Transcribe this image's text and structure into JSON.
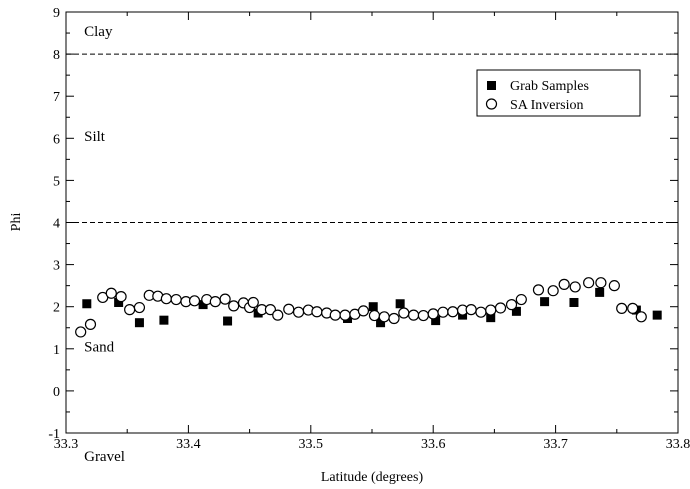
{
  "chart_data": {
    "type": "scatter",
    "title": "",
    "xlabel": "Latitude (degrees)",
    "ylabel": "Phi",
    "xlim": [
      33.3,
      33.8
    ],
    "ylim": [
      -1,
      9
    ],
    "xticks": [
      33.3,
      33.4,
      33.5,
      33.6,
      33.7,
      33.8
    ],
    "yticks": [
      -1,
      0,
      1,
      2,
      3,
      4,
      5,
      6,
      7,
      8,
      9
    ],
    "xtick_labels": [
      "33.3",
      "33.4",
      "33.5",
      "33.6",
      "33.7",
      "33.8"
    ],
    "ytick_labels": [
      "-1",
      "0",
      "1",
      "2",
      "3",
      "4",
      "5",
      "6",
      "7",
      "8",
      "9"
    ],
    "grid": false,
    "legend_position": "top-right",
    "reference_lines": [
      {
        "y": 8,
        "style": "dashed"
      },
      {
        "y": 4,
        "style": "dashed"
      }
    ],
    "annotations": [
      {
        "text": "Clay",
        "x": 33.305,
        "y": 8.55
      },
      {
        "text": "Silt",
        "x": 33.305,
        "y": 6.05
      },
      {
        "text": "Sand",
        "x": 33.305,
        "y": 1.05
      },
      {
        "text": "Gravel",
        "x": 33.305,
        "y": -1.55
      }
    ],
    "series": [
      {
        "name": "Grab Samples",
        "marker": "filled-square",
        "points": [
          [
            33.317,
            2.07
          ],
          [
            33.343,
            2.1
          ],
          [
            33.36,
            1.62
          ],
          [
            33.38,
            1.68
          ],
          [
            33.412,
            2.05
          ],
          [
            33.432,
            1.66
          ],
          [
            33.457,
            1.85
          ],
          [
            33.53,
            1.72
          ],
          [
            33.551,
            2.0
          ],
          [
            33.557,
            1.62
          ],
          [
            33.573,
            2.07
          ],
          [
            33.602,
            1.67
          ],
          [
            33.624,
            1.8
          ],
          [
            33.647,
            1.74
          ],
          [
            33.668,
            1.89
          ],
          [
            33.691,
            2.12
          ],
          [
            33.715,
            2.1
          ],
          [
            33.736,
            2.34
          ],
          [
            33.766,
            1.92
          ],
          [
            33.783,
            1.8
          ]
        ]
      },
      {
        "name": "SA Inversion",
        "marker": "open-circle",
        "points": [
          [
            33.312,
            1.4
          ],
          [
            33.32,
            1.58
          ],
          [
            33.33,
            2.22
          ],
          [
            33.337,
            2.32
          ],
          [
            33.345,
            2.24
          ],
          [
            33.352,
            1.93
          ],
          [
            33.36,
            1.98
          ],
          [
            33.368,
            2.27
          ],
          [
            33.375,
            2.25
          ],
          [
            33.382,
            2.19
          ],
          [
            33.39,
            2.17
          ],
          [
            33.398,
            2.12
          ],
          [
            33.405,
            2.14
          ],
          [
            33.415,
            2.17
          ],
          [
            33.422,
            2.12
          ],
          [
            33.43,
            2.18
          ],
          [
            33.437,
            2.02
          ],
          [
            33.445,
            2.09
          ],
          [
            33.45,
            1.98
          ],
          [
            33.453,
            2.1
          ],
          [
            33.46,
            1.93
          ],
          [
            33.467,
            1.93
          ],
          [
            33.473,
            1.8
          ],
          [
            33.482,
            1.94
          ],
          [
            33.49,
            1.87
          ],
          [
            33.498,
            1.92
          ],
          [
            33.505,
            1.88
          ],
          [
            33.513,
            1.85
          ],
          [
            33.52,
            1.8
          ],
          [
            33.528,
            1.8
          ],
          [
            33.536,
            1.82
          ],
          [
            33.543,
            1.9
          ],
          [
            33.552,
            1.79
          ],
          [
            33.56,
            1.76
          ],
          [
            33.568,
            1.72
          ],
          [
            33.576,
            1.85
          ],
          [
            33.584,
            1.8
          ],
          [
            33.592,
            1.79
          ],
          [
            33.6,
            1.83
          ],
          [
            33.608,
            1.87
          ],
          [
            33.616,
            1.88
          ],
          [
            33.624,
            1.92
          ],
          [
            33.631,
            1.93
          ],
          [
            33.639,
            1.87
          ],
          [
            33.647,
            1.92
          ],
          [
            33.655,
            1.97
          ],
          [
            33.664,
            2.05
          ],
          [
            33.672,
            2.17
          ],
          [
            33.686,
            2.4
          ],
          [
            33.698,
            2.38
          ],
          [
            33.707,
            2.53
          ],
          [
            33.716,
            2.47
          ],
          [
            33.727,
            2.57
          ],
          [
            33.737,
            2.57
          ],
          [
            33.748,
            2.5
          ],
          [
            33.754,
            1.96
          ],
          [
            33.763,
            1.96
          ],
          [
            33.77,
            1.76
          ]
        ]
      }
    ]
  }
}
